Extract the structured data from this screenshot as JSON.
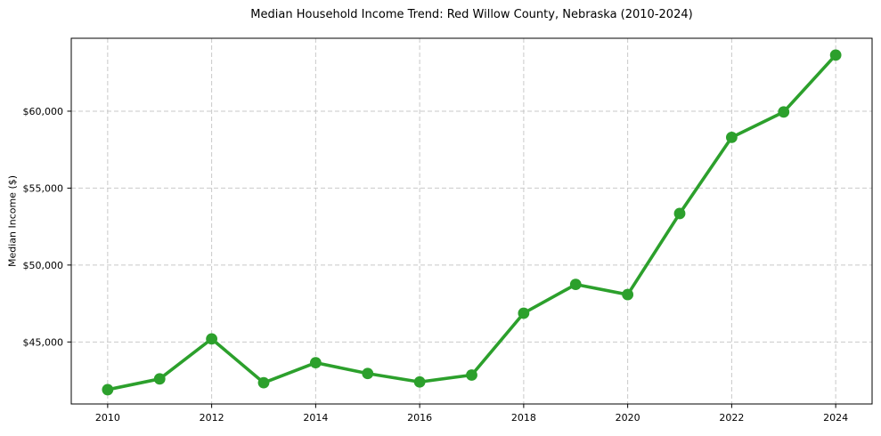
{
  "chart_data": {
    "type": "line",
    "title": "Median Household Income Trend: Red Willow County, Nebraska (2010-2024)",
    "xlabel": "",
    "ylabel": "Median Income ($)",
    "series": [
      {
        "name": "Median household income",
        "x": [
          2010,
          2011,
          2012,
          2013,
          2014,
          2015,
          2016,
          2017,
          2018,
          2019,
          2020,
          2021,
          2022,
          2023,
          2024
        ],
        "values": [
          41900,
          42600,
          45200,
          42350,
          43650,
          42950,
          42400,
          42850,
          46870,
          48740,
          48080,
          53350,
          58300,
          59950,
          63650
        ]
      }
    ],
    "xlim": [
      2009.3,
      2024.7
    ],
    "ylim": [
      40970,
      64740
    ],
    "x_ticks": [
      2010,
      2012,
      2014,
      2016,
      2018,
      2020,
      2022,
      2024
    ],
    "y_ticks": [
      45000,
      50000,
      55000,
      60000
    ],
    "y_tick_labels": [
      "$45,000",
      "$50,000",
      "$55,000",
      "$60,000"
    ],
    "grid": true,
    "grid_style": "dashed",
    "legend": false,
    "colors": {
      "line": "#2ca02c",
      "marker": "#2ca02c",
      "grid": "#c9c9c9",
      "spine": "#000000",
      "text": "#000000",
      "background": "#ffffff"
    }
  }
}
